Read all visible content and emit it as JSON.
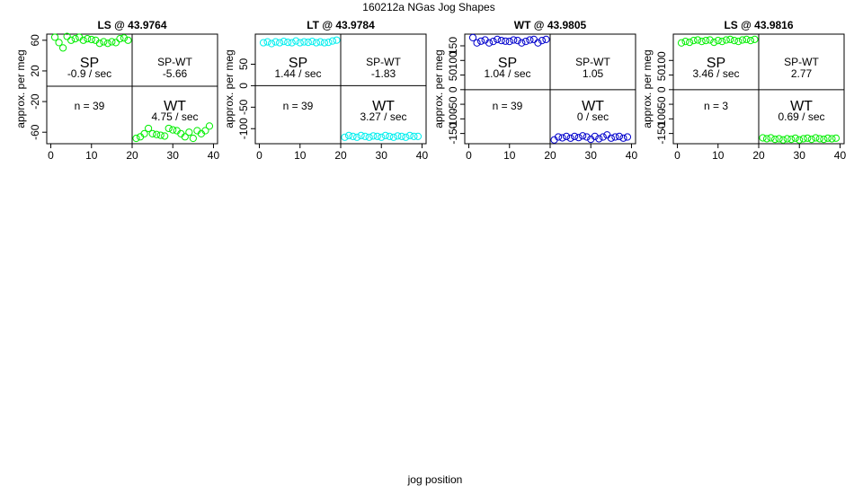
{
  "figure": {
    "title": "160212a   NGas Jog Shapes",
    "xlabel": "jog position",
    "ylabel": "approx. per meg"
  },
  "chart_data": [
    {
      "type": "scatter",
      "title": "LS @ 43.9764",
      "color": "#00ee00",
      "xlim": [
        -1,
        41
      ],
      "ylim": [
        -75,
        68
      ],
      "xticks": [
        0,
        10,
        20,
        30,
        40
      ],
      "yticks": [
        60,
        20,
        -20,
        -60
      ],
      "quadrants": {
        "sp": "SP",
        "sp_rate": "-0.9 / sec",
        "spwt": "SP-WT",
        "spwt_val": "-5.66",
        "n": "n = 39",
        "wt": "WT",
        "wt_rate": "4.75 / sec"
      },
      "series": [
        {
          "x": [
            1,
            2,
            3,
            4,
            5,
            6,
            7,
            8,
            9,
            10,
            11,
            12,
            13,
            14,
            15,
            16,
            17,
            18,
            19
          ],
          "y": [
            64,
            57,
            50,
            65,
            60,
            62,
            64,
            60,
            62,
            61,
            60,
            56,
            58,
            56,
            58,
            57,
            62,
            63,
            60
          ]
        },
        {
          "x": [
            21,
            22,
            23,
            24,
            25,
            26,
            27,
            28,
            29,
            30,
            31,
            32,
            33,
            34,
            35,
            36,
            37,
            38,
            39
          ],
          "y": [
            -68,
            -66,
            -62,
            -55,
            -62,
            -63,
            -64,
            -65,
            -55,
            -57,
            -58,
            -62,
            -66,
            -60,
            -68,
            -58,
            -62,
            -58,
            -52
          ]
        }
      ]
    },
    {
      "type": "scatter",
      "title": "LT @ 43.9784",
      "color": "#00eeee",
      "xlim": [
        -1,
        41
      ],
      "ylim": [
        -135,
        120
      ],
      "xticks": [
        0,
        10,
        20,
        30,
        40
      ],
      "yticks": [
        50,
        0,
        -50,
        -100
      ],
      "quadrants": {
        "sp": "SP",
        "sp_rate": "1.44 / sec",
        "spwt": "SP-WT",
        "spwt_val": "-1.83",
        "n": "n = 39",
        "wt": "WT",
        "wt_rate": "3.27 / sec"
      },
      "series": [
        {
          "x": [
            1,
            2,
            3,
            4,
            5,
            6,
            7,
            8,
            9,
            10,
            11,
            12,
            13,
            14,
            15,
            16,
            17,
            18,
            19
          ],
          "y": [
            100,
            102,
            98,
            102,
            100,
            103,
            101,
            100,
            104,
            100,
            102,
            101,
            103,
            100,
            102,
            100,
            101,
            104,
            106
          ]
        },
        {
          "x": [
            21,
            22,
            23,
            24,
            25,
            26,
            27,
            28,
            29,
            30,
            31,
            32,
            33,
            34,
            35,
            36,
            37,
            38,
            39
          ],
          "y": [
            -120,
            -116,
            -118,
            -120,
            -116,
            -118,
            -120,
            -117,
            -118,
            -120,
            -116,
            -118,
            -120,
            -117,
            -118,
            -120,
            -116,
            -118,
            -118
          ]
        }
      ]
    },
    {
      "type": "scatter",
      "title": "WT @ 43.9805",
      "color": "#0000cc",
      "xlim": [
        -1,
        41
      ],
      "ylim": [
        -185,
        190
      ],
      "xticks": [
        0,
        10,
        20,
        30,
        40
      ],
      "yticks": [
        150,
        100,
        50,
        0,
        -50,
        -100,
        -150
      ],
      "quadrants": {
        "sp": "SP",
        "sp_rate": "1.04 / sec",
        "spwt": "SP-WT",
        "spwt_val": "1.05",
        "n": "n = 39",
        "wt": "WT",
        "wt_rate": "0 / sec"
      },
      "series": [
        {
          "x": [
            1,
            2,
            3,
            4,
            5,
            6,
            7,
            8,
            9,
            10,
            11,
            12,
            13,
            14,
            15,
            16,
            17,
            18,
            19
          ],
          "y": [
            178,
            160,
            166,
            170,
            160,
            165,
            172,
            168,
            166,
            165,
            170,
            168,
            160,
            165,
            170,
            172,
            160,
            168,
            172
          ]
        },
        {
          "x": [
            21,
            22,
            23,
            24,
            25,
            26,
            27,
            28,
            29,
            30,
            31,
            32,
            33,
            34,
            35,
            36,
            37,
            38,
            39
          ],
          "y": [
            -172,
            -162,
            -165,
            -160,
            -166,
            -160,
            -164,
            -158,
            -162,
            -170,
            -160,
            -168,
            -162,
            -155,
            -166,
            -162,
            -160,
            -166,
            -162
          ]
        }
      ]
    },
    {
      "type": "scatter",
      "title": "LS @ 43.9816",
      "color": "#00ee00",
      "xlim": [
        -1,
        41
      ],
      "ylim": [
        -185,
        190
      ],
      "xticks": [
        0,
        10,
        20,
        30,
        40
      ],
      "yticks": [
        100,
        50,
        0,
        -50,
        -100,
        -150
      ],
      "quadrants": {
        "sp": "SP",
        "sp_rate": "3.46 / sec",
        "spwt": "SP-WT",
        "spwt_val": "2.77",
        "n": "n = 3",
        "wt": "WT",
        "wt_rate": "0.69 / sec"
      },
      "series": [
        {
          "x": [
            1,
            2,
            3,
            4,
            5,
            6,
            7,
            8,
            9,
            10,
            11,
            12,
            13,
            14,
            15,
            16,
            17,
            18,
            19
          ],
          "y": [
            160,
            165,
            162,
            168,
            170,
            165,
            168,
            170,
            162,
            168,
            165,
            170,
            172,
            168,
            165,
            170,
            172,
            168,
            172
          ]
        },
        {
          "x": [
            21,
            22,
            23,
            24,
            25,
            26,
            27,
            28,
            29,
            30,
            31,
            32,
            33,
            34,
            35,
            36,
            37,
            38,
            39
          ],
          "y": [
            -165,
            -168,
            -165,
            -170,
            -168,
            -172,
            -168,
            -170,
            -166,
            -172,
            -168,
            -166,
            -170,
            -165,
            -168,
            -170,
            -166,
            -168,
            -166
          ]
        }
      ]
    }
  ]
}
